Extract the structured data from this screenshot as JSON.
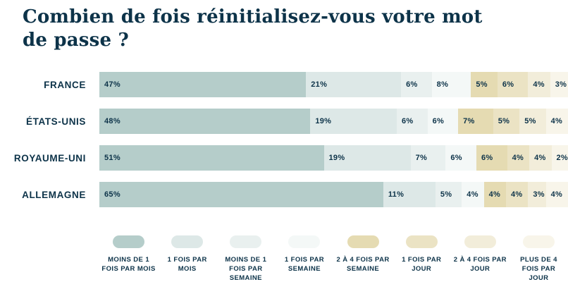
{
  "title": "Combien de fois réinitialisez-vous votre mot de passe ?",
  "colors": {
    "text": "#0d3349",
    "background": "#ffffff"
  },
  "chart_data": {
    "type": "bar",
    "orientation": "horizontal",
    "stacked": true,
    "value_unit": "%",
    "title": "Combien de fois réinitialisez-vous votre mot de passe ?",
    "categories": [
      "FRANCE",
      "ÉTATS-UNIS",
      "ROYAUME-UNI",
      "ALLEMAGNE"
    ],
    "series": [
      {
        "name": "MOINS DE 1 FOIS PAR MOIS",
        "color": "#b5cdca",
        "values": [
          47,
          48,
          51,
          65
        ]
      },
      {
        "name": "1 FOIS PAR MOIS",
        "color": "#dde8e7",
        "values": [
          21,
          19,
          19,
          11
        ]
      },
      {
        "name": "MOINS DE 1 FOIS PAR SEMAINE",
        "color": "#e9f0ef",
        "values": [
          6,
          6,
          7,
          5
        ]
      },
      {
        "name": "1 FOIS PAR SEMAINE",
        "color": "#f4f8f7",
        "values": [
          8,
          6,
          6,
          4
        ]
      },
      {
        "name": "2 À 4 FOIS PAR SEMAINE",
        "color": "#e5dbb2",
        "values": [
          5,
          7,
          6,
          4
        ]
      },
      {
        "name": "1 FOIS PAR JOUR",
        "color": "#ebe3c4",
        "values": [
          6,
          5,
          4,
          4
        ]
      },
      {
        "name": "2 À 4 FOIS PAR JOUR",
        "color": "#f2edda",
        "values": [
          4,
          5,
          4,
          3
        ]
      },
      {
        "name": "PLUS DE 4 FOIS PAR JOUR",
        "color": "#f8f5ea",
        "values": [
          3,
          4,
          2,
          4
        ]
      }
    ],
    "xlim": [
      0,
      100
    ],
    "grid": false,
    "axes_visible": false,
    "data_labels": true,
    "legend_position": "bottom"
  }
}
